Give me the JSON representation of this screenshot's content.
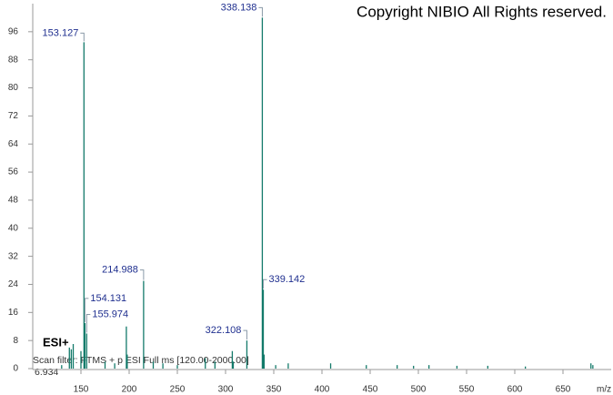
{
  "chart_data": {
    "type": "spectrum",
    "copyright": "Copyright NIBIO All Rights reserved.",
    "ionization": "ESI+",
    "scan_filter": "Scan filter: FTMS + p ESI Full ms [120.00-2000.00]",
    "retention_time": "6.934",
    "x_label": "m/z",
    "color": "#137a6a",
    "label_color": "#1f2f8f",
    "xlim": [
      100,
      700
    ],
    "ylim": [
      0,
      104
    ],
    "xticks": [
      150,
      200,
      250,
      300,
      350,
      400,
      450,
      500,
      550,
      600,
      650
    ],
    "yticks": [
      0,
      8,
      16,
      24,
      32,
      40,
      48,
      56,
      64,
      72,
      80,
      88,
      96
    ],
    "labeled_count": 7,
    "x": [
      153.127,
      338.138,
      339.142,
      214.988,
      154.131,
      155.974,
      322.108,
      197.1,
      198,
      150,
      140,
      138,
      142,
      130,
      175,
      185,
      225,
      235,
      250,
      279,
      289,
      307,
      308,
      340,
      352,
      365,
      409,
      446,
      478,
      495,
      511,
      540,
      572,
      611,
      679,
      681
    ],
    "values": [
      93,
      100,
      22.5,
      25,
      13,
      10,
      8,
      12,
      4,
      5,
      5.5,
      6,
      7,
      1,
      2,
      1.5,
      2,
      1.5,
      1,
      3,
      2,
      5,
      2,
      4,
      1,
      1.5,
      1.5,
      1,
      1,
      0.8,
      1,
      0.8,
      0.8,
      0.6,
      1.5,
      1
    ]
  }
}
